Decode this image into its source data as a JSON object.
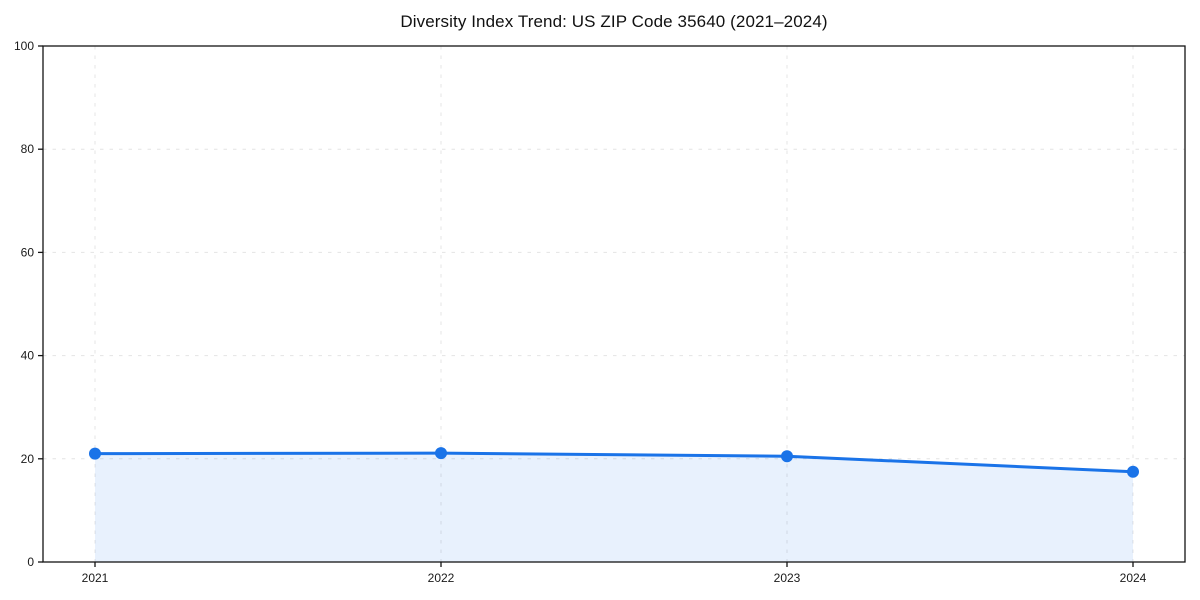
{
  "title": "Diversity Index Trend: US ZIP Code 35640 (2021–2024)",
  "chart_data": {
    "type": "area",
    "title": "Diversity Index Trend: US ZIP Code 35640 (2021–2024)",
    "categories": [
      "2021",
      "2022",
      "2023",
      "2024"
    ],
    "values": [
      21,
      21.1,
      20.5,
      17.5
    ],
    "series_name": "Diversity Index",
    "xlabel": "",
    "ylabel": "",
    "ylim": [
      0,
      100
    ],
    "yticks": [
      0,
      20,
      40,
      60,
      80,
      100
    ],
    "grid": "dashed",
    "legend": "none",
    "line_color": "#1a73e8",
    "fill_color": "#1a73e8",
    "fill_opacity": 0.1,
    "marker": "circle"
  }
}
